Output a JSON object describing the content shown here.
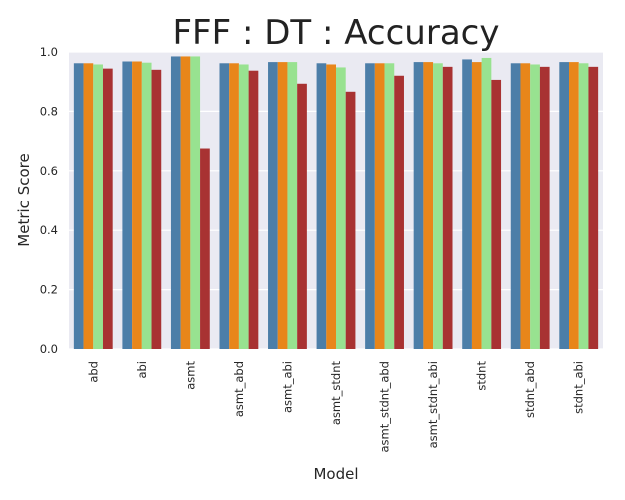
{
  "chart_data": {
    "type": "bar",
    "title": "FFF : DT : Accuracy",
    "xlabel": "Model",
    "ylabel": "Metric Score",
    "ylim": [
      0,
      1.0
    ],
    "yticks": [
      "0.0",
      "0.2",
      "0.4",
      "0.6",
      "0.8",
      "1.0"
    ],
    "grid": true,
    "categories": [
      "abd",
      "abi",
      "asmt",
      "asmt_abd",
      "asmt_abi",
      "asmt_stdnt",
      "asmt_stdnt_abd",
      "asmt_stdnt_abi",
      "stdnt",
      "stdnt_abd",
      "stdnt_abi"
    ],
    "series": [
      {
        "color": "#4c7ea8",
        "values": [
          0.962,
          0.968,
          0.985,
          0.962,
          0.966,
          0.962,
          0.962,
          0.966,
          0.975,
          0.962,
          0.966
        ]
      },
      {
        "color": "#e8861a",
        "values": [
          0.962,
          0.968,
          0.985,
          0.962,
          0.966,
          0.958,
          0.962,
          0.966,
          0.966,
          0.962,
          0.966
        ]
      },
      {
        "color": "#98e290",
        "values": [
          0.958,
          0.964,
          0.985,
          0.958,
          0.966,
          0.948,
          0.962,
          0.962,
          0.98,
          0.958,
          0.962
        ]
      },
      {
        "color": "#a83232",
        "values": [
          0.944,
          0.94,
          0.675,
          0.937,
          0.893,
          0.866,
          0.92,
          0.95,
          0.906,
          0.95,
          0.95
        ]
      }
    ]
  }
}
